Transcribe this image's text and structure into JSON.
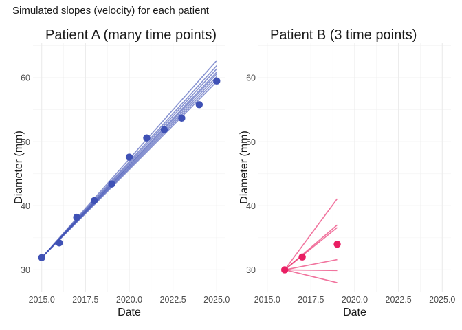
{
  "suptitle": "Simulated slopes (velocity) for each patient",
  "chart_data": [
    {
      "type": "scatter",
      "title": "Patient A (many time points)",
      "xlabel": "Date",
      "ylabel": "Diameter (mm)",
      "xlim": [
        2014.5,
        2025.5
      ],
      "ylim": [
        26.5,
        65.5
      ],
      "xticks": [
        2015.0,
        2017.5,
        2020.0,
        2022.5,
        2025.0
      ],
      "xtick_labels": [
        "2015.0",
        "2017.5",
        "2020.0",
        "2022.5",
        "2025.0"
      ],
      "yticks": [
        30,
        40,
        50,
        60
      ],
      "ytick_labels": [
        "30",
        "40",
        "50",
        "60"
      ],
      "grid": true,
      "color": "#3F51B5",
      "points": {
        "x": [
          2015,
          2016,
          2017,
          2018,
          2019,
          2020,
          2021,
          2022,
          2023,
          2024,
          2025
        ],
        "y": [
          31.9,
          34.2,
          38.2,
          40.8,
          43.4,
          47.6,
          50.6,
          51.9,
          53.7,
          55.8,
          59.5
        ]
      },
      "slope_lines": [
        {
          "x": [
            2015,
            2025
          ],
          "y": [
            31.9,
            62.7
          ]
        },
        {
          "x": [
            2015,
            2025
          ],
          "y": [
            31.9,
            61.9
          ]
        },
        {
          "x": [
            2015,
            2025
          ],
          "y": [
            31.9,
            61.4
          ]
        },
        {
          "x": [
            2015,
            2025
          ],
          "y": [
            31.9,
            60.9
          ]
        },
        {
          "x": [
            2015,
            2025
          ],
          "y": [
            31.9,
            60.6
          ]
        },
        {
          "x": [
            2015,
            2025
          ],
          "y": [
            31.9,
            60.2
          ]
        },
        {
          "x": [
            2015,
            2025
          ],
          "y": [
            31.9,
            59.8
          ]
        },
        {
          "x": [
            2015,
            2025
          ],
          "y": [
            31.9,
            59.4
          ]
        }
      ]
    },
    {
      "type": "scatter",
      "title": "Patient B (3 time points)",
      "xlabel": "Date",
      "ylabel": "Diameter (mm)",
      "xlim": [
        2014.5,
        2025.5
      ],
      "ylim": [
        26.5,
        65.5
      ],
      "xticks": [
        2015.0,
        2017.5,
        2020.0,
        2022.5,
        2025.0
      ],
      "xtick_labels": [
        "2015.0",
        "2017.5",
        "2020.0",
        "2022.5",
        "2025.0"
      ],
      "yticks": [
        30,
        40,
        50,
        60
      ],
      "ytick_labels": [
        "30",
        "40",
        "50",
        "60"
      ],
      "grid": true,
      "color": "#E91E63",
      "points": {
        "x": [
          2016,
          2017,
          2019
        ],
        "y": [
          30.0,
          32.0,
          34.0
        ]
      },
      "slope_lines": [
        {
          "x": [
            2016,
            2019
          ],
          "y": [
            30.0,
            41.1
          ]
        },
        {
          "x": [
            2016,
            2019
          ],
          "y": [
            30.0,
            37.0
          ]
        },
        {
          "x": [
            2016,
            2019
          ],
          "y": [
            30.0,
            36.6
          ]
        },
        {
          "x": [
            2016,
            2019
          ],
          "y": [
            30.0,
            31.6
          ]
        },
        {
          "x": [
            2016,
            2019
          ],
          "y": [
            30.0,
            29.9
          ]
        },
        {
          "x": [
            2016,
            2019
          ],
          "y": [
            30.0,
            28.0
          ]
        }
      ]
    }
  ]
}
